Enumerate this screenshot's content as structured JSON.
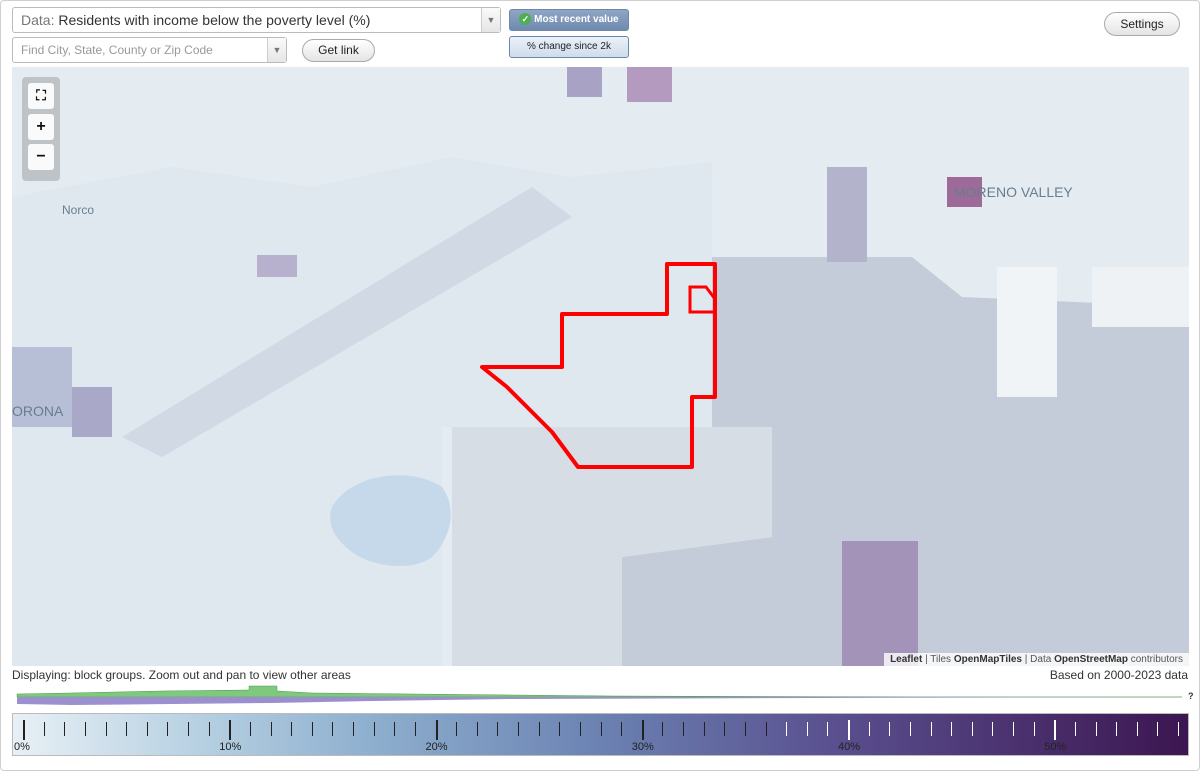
{
  "data_select": {
    "prefix": "Data:",
    "value": "Residents with income below the poverty level (%)"
  },
  "search": {
    "placeholder": "Find City, State, County or Zip Code"
  },
  "buttons": {
    "get_link": "Get link",
    "settings": "Settings",
    "most_recent": "Most recent value",
    "pct_change": "% change since 2k"
  },
  "map": {
    "labels": {
      "norco": "Norco",
      "moreno_valley": "MORENO VALLEY",
      "corona": "ORONA"
    },
    "zoom": {
      "fit": "⛶",
      "in": "+",
      "out": "−"
    },
    "attribution": {
      "leaflet": "Leaflet",
      "tiles_prefix": "Tiles",
      "tiles": "OpenMapTiles",
      "data_prefix": "Data",
      "osm": "OpenStreetMap",
      "suffix": "contributors"
    }
  },
  "status": {
    "displaying": "Displaying: block groups. Zoom out and pan to view other areas",
    "based_on": "Based on 2000-2023 data",
    "help": "?"
  },
  "legend": {
    "labels": [
      "0%",
      "10%",
      "20%",
      "30%",
      "40%",
      "50%"
    ],
    "min": 0,
    "max": 56
  },
  "colors": {
    "accent_outline": "#ff0000",
    "legend_low": "#e8f0f5",
    "legend_high": "#3c1650",
    "histogram_top": "#7fc97f",
    "histogram_bottom": "#9b8fd0"
  }
}
